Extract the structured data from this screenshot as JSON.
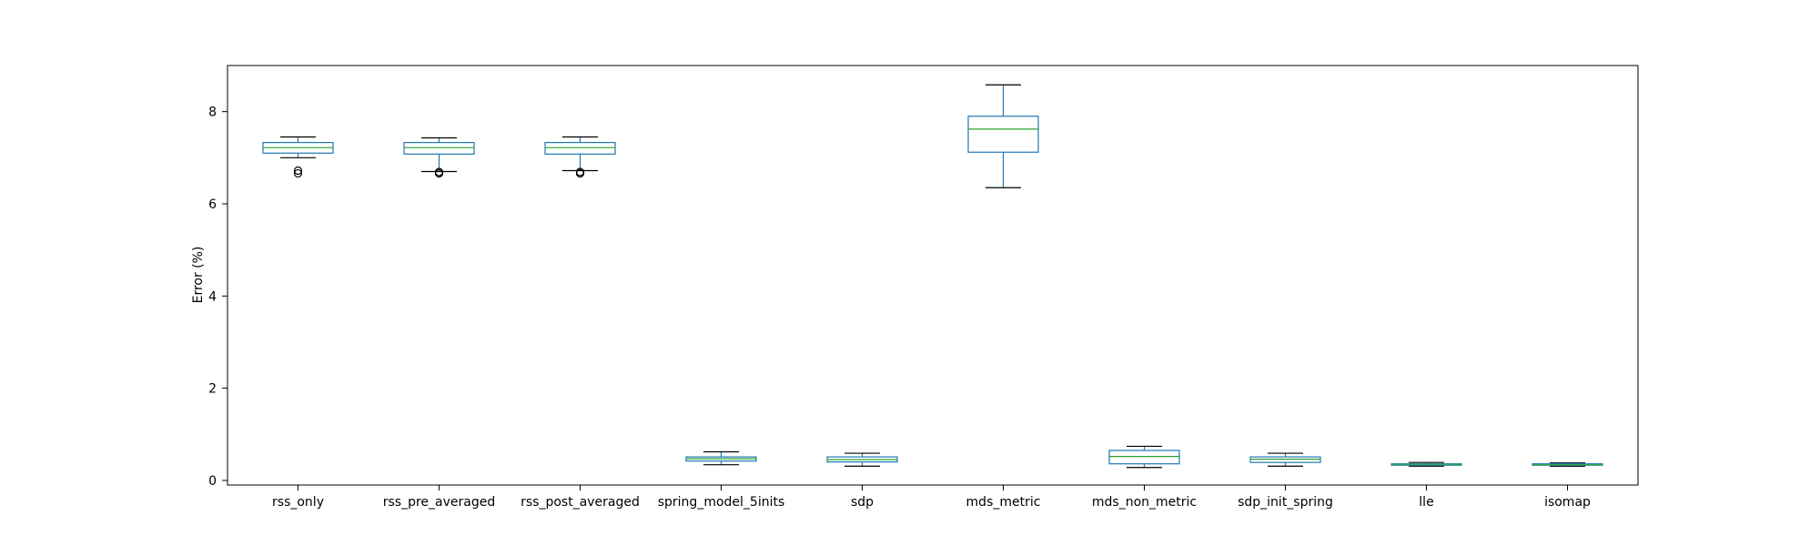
{
  "chart_data": {
    "type": "box",
    "ylabel": "Error (%)",
    "ylim": [
      -0.1,
      9.0
    ],
    "yticks": [
      0,
      2,
      4,
      6,
      8
    ],
    "grid": false,
    "box_color": "#1f77b4",
    "median_color": "#2ca02c",
    "whisker_color": "#000000",
    "categories": [
      "rss_only",
      "rss_pre_averaged",
      "rss_post_averaged",
      "spring_model_5inits",
      "sdp",
      "mds_metric",
      "mds_non_metric",
      "sdp_init_spring",
      "lle",
      "isomap"
    ],
    "boxes": [
      {
        "whislo": 7.0,
        "q1": 7.1,
        "med": 7.22,
        "q3": 7.33,
        "whishi": 7.45,
        "fliers": [
          6.66,
          6.72
        ]
      },
      {
        "whislo": 6.7,
        "q1": 7.08,
        "med": 7.22,
        "q3": 7.33,
        "whishi": 7.43,
        "fliers": [
          6.66,
          6.69
        ]
      },
      {
        "whislo": 6.72,
        "q1": 7.08,
        "med": 7.22,
        "q3": 7.33,
        "whishi": 7.45,
        "fliers": [
          6.66,
          6.69
        ]
      },
      {
        "whislo": 0.34,
        "q1": 0.42,
        "med": 0.47,
        "q3": 0.51,
        "whishi": 0.62,
        "fliers": []
      },
      {
        "whislo": 0.31,
        "q1": 0.4,
        "med": 0.45,
        "q3": 0.51,
        "whishi": 0.59,
        "fliers": []
      },
      {
        "whislo": 6.35,
        "q1": 7.12,
        "med": 7.62,
        "q3": 7.9,
        "whishi": 8.58,
        "fliers": []
      },
      {
        "whislo": 0.28,
        "q1": 0.36,
        "med": 0.52,
        "q3": 0.65,
        "whishi": 0.74,
        "fliers": []
      },
      {
        "whislo": 0.31,
        "q1": 0.39,
        "med": 0.46,
        "q3": 0.51,
        "whishi": 0.59,
        "fliers": []
      },
      {
        "whislo": 0.31,
        "q1": 0.33,
        "med": 0.35,
        "q3": 0.36,
        "whishi": 0.39,
        "fliers": []
      },
      {
        "whislo": 0.31,
        "q1": 0.33,
        "med": 0.34,
        "q3": 0.36,
        "whishi": 0.38,
        "fliers": []
      }
    ]
  }
}
